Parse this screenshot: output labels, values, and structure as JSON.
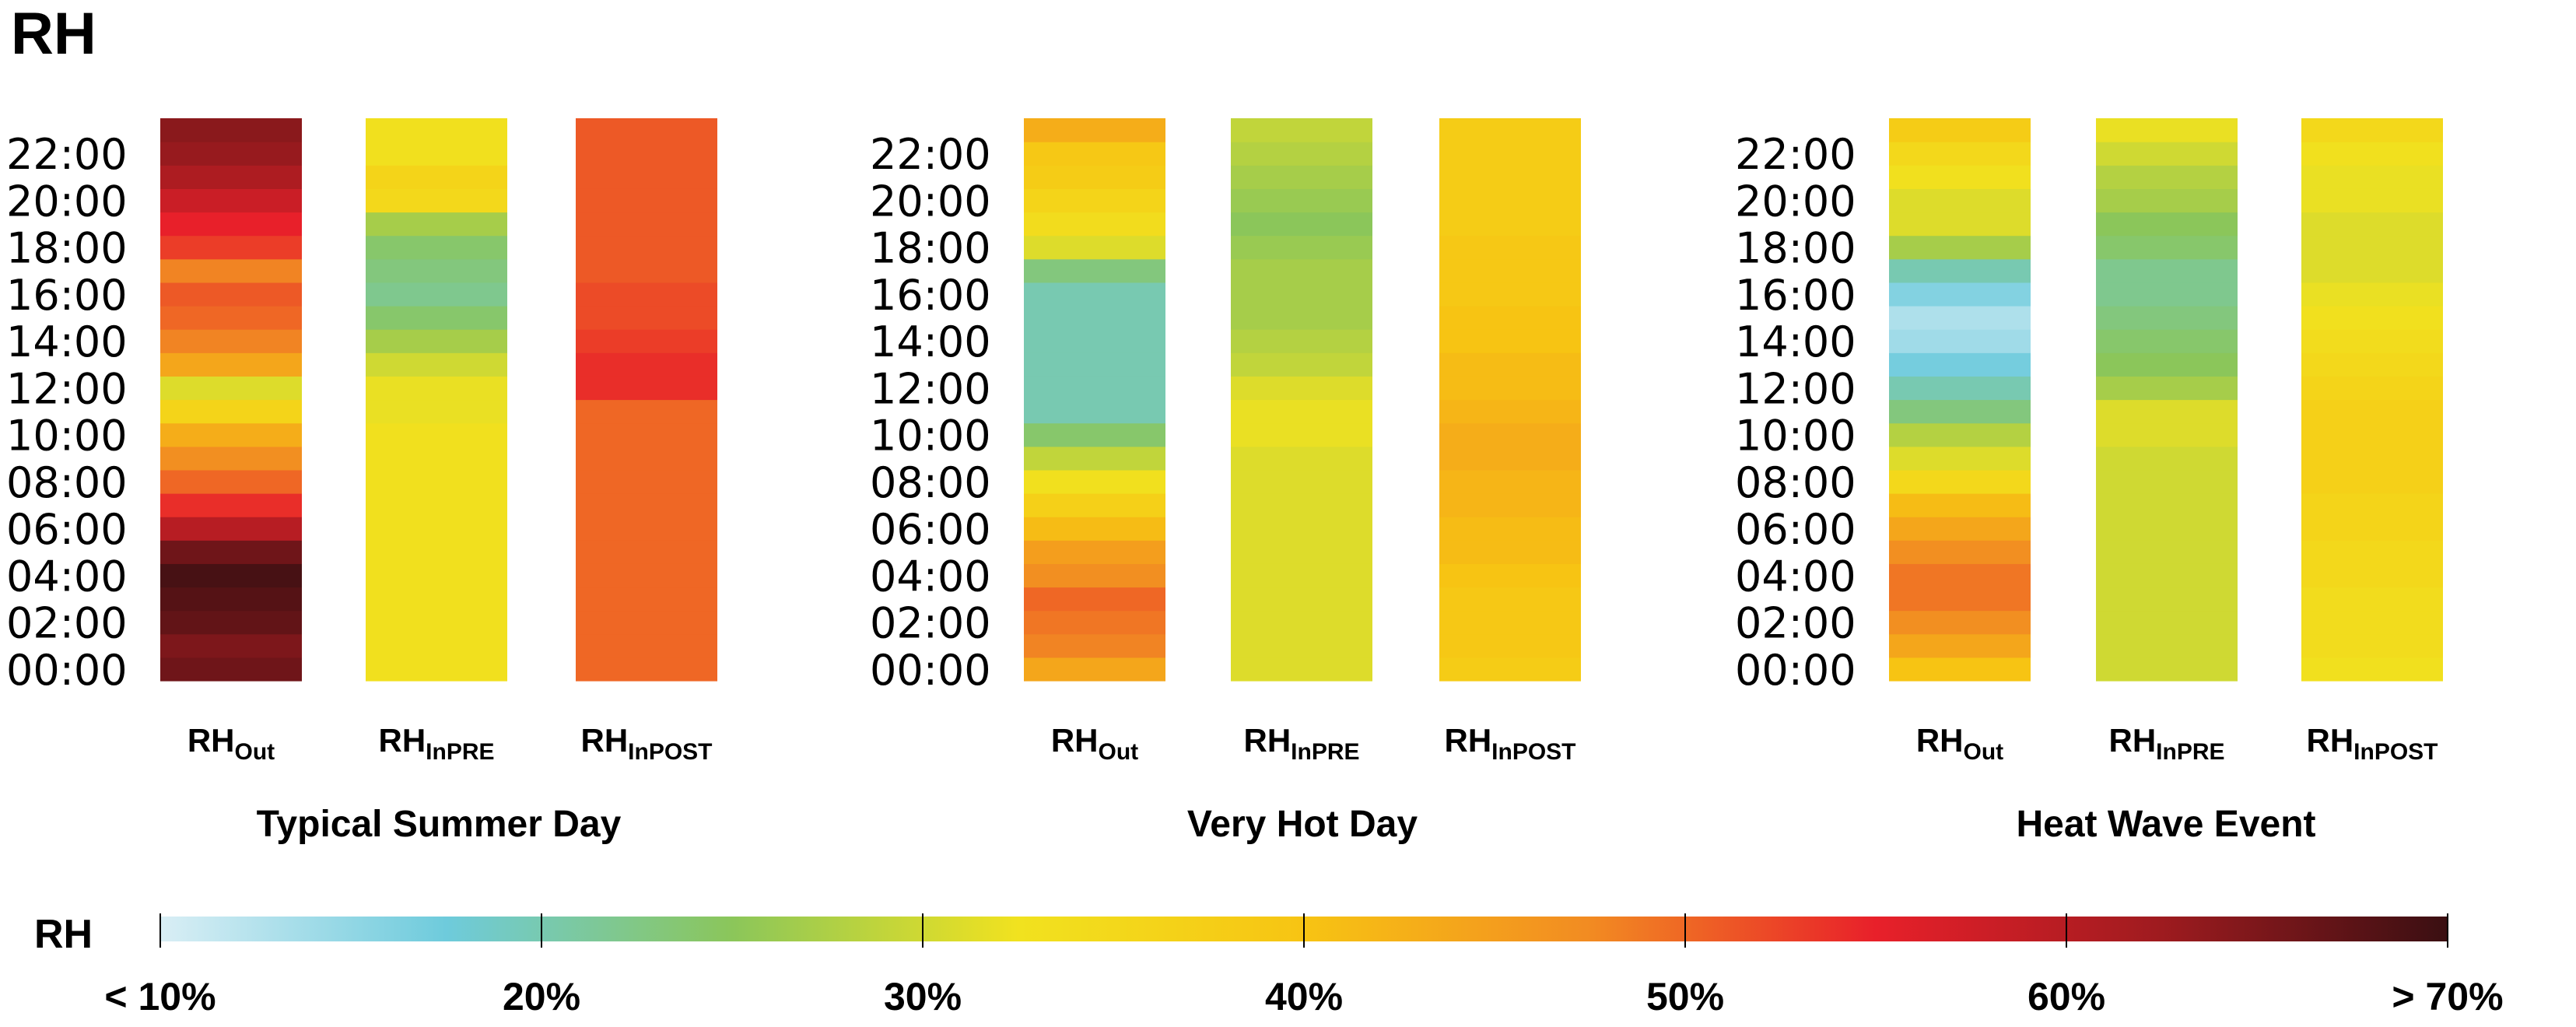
{
  "title": "RH",
  "colors": {
    "scale_stops": [
      "#d9eef5",
      "#6ecbdc",
      "#8bc65a",
      "#f1e21f",
      "#f7c413",
      "#f28b22",
      "#e8202a",
      "#9e1b1f",
      "#3a0f12"
    ]
  },
  "chart_data": {
    "type": "heatmap",
    "y_ticks": [
      "22:00",
      "20:00",
      "18:00",
      "16:00",
      "14:00",
      "12:00",
      "10:00",
      "08:00",
      "06:00",
      "04:00",
      "02:00",
      "00:00"
    ],
    "y_unit": "hour of day",
    "value_unit": "RH %",
    "hours": [
      0,
      1,
      2,
      3,
      4,
      5,
      6,
      7,
      8,
      9,
      10,
      11,
      12,
      13,
      14,
      15,
      16,
      17,
      18,
      19,
      20,
      21,
      22,
      23
    ],
    "panels": [
      {
        "title": "Typical Summer Day",
        "columns": [
          {
            "label_main": "RH",
            "label_sub": "Out",
            "values": [
              66,
              65,
              67,
              68,
              69,
              66,
              60,
              54,
              50,
              47,
              43,
              36,
              31,
              44,
              48,
              50,
              51,
              48,
              53,
              55,
              58,
              61,
              63,
              64
            ]
          },
          {
            "label_main": "RH",
            "label_sub": "InPRE",
            "values": [
              33,
              33,
              33,
              33,
              33,
              33,
              33,
              33,
              33,
              33,
              33,
              32,
              32,
              30,
              27,
              24,
              22,
              23,
              24,
              27,
              35,
              36,
              33,
              33
            ]
          },
          {
            "label_main": "RH",
            "label_sub": "InPOST",
            "values": [
              50,
              50,
              50,
              50,
              50,
              50,
              50,
              50,
              50,
              50,
              50,
              50,
              54,
              54,
              53,
              52,
              52,
              51,
              51,
              51,
              51,
              51,
              51,
              51
            ]
          }
        ]
      },
      {
        "title": "Very Hot Day",
        "columns": [
          {
            "label_main": "RH",
            "label_sub": "Out",
            "values": [
              44,
              48,
              49,
              50,
              47,
              45,
              41,
              37,
              33,
              29,
              24,
              20,
              20,
              20,
              20,
              20,
              20,
              23,
              31,
              34,
              36,
              38,
              39,
              43
            ]
          },
          {
            "label_main": "RH",
            "label_sub": "InPRE",
            "values": [
              31,
              31,
              31,
              31,
              31,
              31,
              31,
              31,
              31,
              31,
              32,
              32,
              31,
              29,
              28,
              27,
              27,
              27,
              26,
              25,
              26,
              27,
              28,
              29
            ]
          },
          {
            "label_main": "RH",
            "label_sub": "InPOST",
            "values": [
              38,
              39,
              39,
              39,
              40,
              41,
              41,
              42,
              42,
              43,
              43,
              42,
              41,
              41,
              40,
              40,
              39,
              39,
              39,
              38,
              38,
              38,
              38,
              38
            ]
          }
        ]
      },
      {
        "title": "Heat Wave Event",
        "columns": [
          {
            "label_main": "RH",
            "label_sub": "Out",
            "values": [
              40,
              44,
              47,
              49,
              49,
              47,
              44,
              41,
              35,
              31,
              28,
              23,
              20,
              17,
              14,
              13,
              16,
              20,
              27,
              31,
              31,
              33,
              35,
              38
            ]
          },
          {
            "label_main": "RH",
            "label_sub": "InPRE",
            "values": [
              30,
              30,
              30,
              30,
              30,
              30,
              30,
              30,
              30,
              30,
              31,
              31,
              27,
              25,
              24,
              23,
              22,
              22,
              24,
              25,
              27,
              28,
              30,
              32
            ]
          },
          {
            "label_main": "RH",
            "label_sub": "InPOST",
            "values": [
              33,
              34,
              34,
              34,
              35,
              35,
              36,
              36,
              37,
              37,
              37,
              37,
              36,
              35,
              34,
              33,
              32,
              31,
              31,
              31,
              32,
              32,
              33,
              35
            ]
          }
        ]
      }
    ],
    "color_scale": {
      "title": "RH",
      "min": 10,
      "max": 70,
      "ticks": [
        10,
        20,
        30,
        40,
        50,
        60,
        70
      ],
      "tick_labels": [
        "< 10%",
        "20%",
        "30%",
        "40%",
        "50%",
        "60%",
        "> 70%"
      ]
    }
  }
}
